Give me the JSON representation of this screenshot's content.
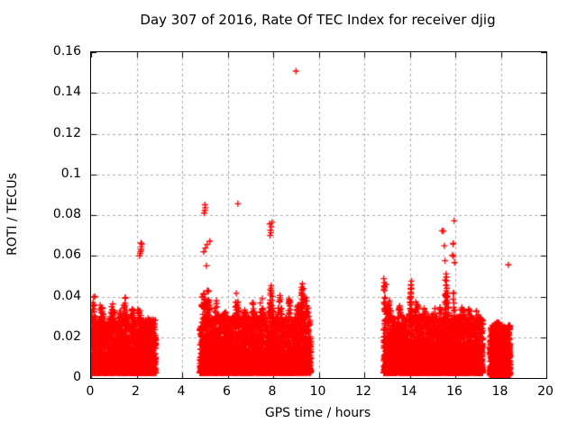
{
  "chart": {
    "title": "Day 307 of 2016, Rate Of TEC Index for receiver djig",
    "xlabel": "GPS time / hours",
    "ylabel": "ROTI / TECUs"
  },
  "chart_data": {
    "type": "scatter",
    "title": "Day 307 of 2016, Rate Of TEC Index for receiver djig",
    "xlabel": "GPS time / hours",
    "ylabel": "ROTI / TECUs",
    "xlim": [
      0,
      20
    ],
    "ylim": [
      0,
      0.16
    ],
    "grid": true,
    "legend": "none",
    "x_ticks": [
      {
        "v": 0,
        "t": "0"
      },
      {
        "v": 2,
        "t": "2"
      },
      {
        "v": 4,
        "t": "4"
      },
      {
        "v": 6,
        "t": "6"
      },
      {
        "v": 8,
        "t": "8"
      },
      {
        "v": 10,
        "t": "10"
      },
      {
        "v": 12,
        "t": "12"
      },
      {
        "v": 14,
        "t": "14"
      },
      {
        "v": 16,
        "t": "16"
      },
      {
        "v": 18,
        "t": "18"
      },
      {
        "v": 20,
        "t": "20"
      }
    ],
    "y_ticks": [
      {
        "v": 0,
        "t": "0"
      },
      {
        "v": 0.02,
        "t": "0.02"
      },
      {
        "v": 0.04,
        "t": "0.04"
      },
      {
        "v": 0.06,
        "t": "0.06"
      },
      {
        "v": 0.08,
        "t": "0.08"
      },
      {
        "v": 0.1,
        "t": "0.1"
      },
      {
        "v": 0.12,
        "t": "0.12"
      },
      {
        "v": 0.14,
        "t": "0.14"
      },
      {
        "v": 0.16,
        "t": "0.16"
      }
    ],
    "marker": {
      "shape": "plus",
      "color": "#ff0000",
      "size": 7,
      "stroke": 1.35
    },
    "grid_color": "#aaaaaa",
    "axis_color": "#000000",
    "background": "#ffffff",
    "seed": 307,
    "clusters": [
      {
        "x_start": 0.02,
        "x_end": 2.85,
        "n": 2100,
        "y_min": 0.0025,
        "y_env": 0.029,
        "skew": 2.2,
        "bumps": [
          [
            0.1,
            0.07,
            0.04,
            25
          ],
          [
            0.45,
            0.09,
            0.036,
            20
          ],
          [
            0.95,
            0.07,
            0.037,
            20
          ],
          [
            1.25,
            0.06,
            0.035,
            15
          ],
          [
            1.5,
            0.07,
            0.04,
            22
          ],
          [
            1.82,
            0.07,
            0.035,
            15
          ],
          [
            2.1,
            0.09,
            0.034,
            15
          ],
          [
            2.55,
            0.06,
            0.03,
            8
          ]
        ]
      },
      {
        "x_start": 4.78,
        "x_end": 9.66,
        "n": 3300,
        "y_min": 0.0025,
        "y_env": 0.03,
        "skew": 2.2,
        "bumps": [
          [
            4.95,
            0.1,
            0.042,
            30
          ],
          [
            5.15,
            0.08,
            0.045,
            25
          ],
          [
            5.5,
            0.08,
            0.038,
            15
          ],
          [
            5.9,
            0.08,
            0.034,
            10
          ],
          [
            6.4,
            0.07,
            0.044,
            20
          ],
          [
            6.75,
            0.08,
            0.034,
            10
          ],
          [
            7.1,
            0.08,
            0.038,
            14
          ],
          [
            7.5,
            0.07,
            0.042,
            16
          ],
          [
            7.9,
            0.08,
            0.046,
            22
          ],
          [
            8.3,
            0.07,
            0.042,
            16
          ],
          [
            8.7,
            0.07,
            0.04,
            14
          ],
          [
            9.1,
            0.06,
            0.038,
            10
          ],
          [
            9.3,
            0.1,
            0.047,
            26
          ],
          [
            9.5,
            0.05,
            0.04,
            10
          ]
        ]
      },
      {
        "x_start": 12.86,
        "x_end": 17.22,
        "n": 3300,
        "y_min": 0.0025,
        "y_env": 0.03,
        "skew": 2.2,
        "bumps": [
          [
            12.9,
            0.06,
            0.046,
            22
          ],
          [
            13.1,
            0.07,
            0.04,
            16
          ],
          [
            13.55,
            0.09,
            0.036,
            14
          ],
          [
            14.05,
            0.06,
            0.046,
            20
          ],
          [
            14.3,
            0.07,
            0.04,
            14
          ],
          [
            14.65,
            0.09,
            0.035,
            12
          ],
          [
            15.05,
            0.07,
            0.038,
            12
          ],
          [
            15.35,
            0.06,
            0.036,
            10
          ],
          [
            15.62,
            0.07,
            0.05,
            26
          ],
          [
            15.92,
            0.05,
            0.042,
            14
          ],
          [
            16.3,
            0.1,
            0.035,
            14
          ],
          [
            16.6,
            0.08,
            0.034,
            12
          ],
          [
            16.95,
            0.08,
            0.033,
            10
          ]
        ]
      },
      {
        "x_start": 17.52,
        "x_end": 18.42,
        "n": 850,
        "y_min": 0.0015,
        "y_env": 0.026,
        "skew": 2.0,
        "bumps": [
          [
            17.85,
            0.1,
            0.028,
            10
          ]
        ]
      }
    ],
    "outliers": [
      [
        2.13,
        0.06
      ],
      [
        2.16,
        0.0613
      ],
      [
        2.18,
        0.0622
      ],
      [
        2.2,
        0.0632
      ],
      [
        2.21,
        0.0645
      ],
      [
        2.23,
        0.0657
      ],
      [
        2.19,
        0.0663
      ],
      [
        4.97,
        0.081
      ],
      [
        5.0,
        0.0823
      ],
      [
        5.02,
        0.0836
      ],
      [
        5.0,
        0.0851
      ],
      [
        4.95,
        0.062
      ],
      [
        5.02,
        0.0638
      ],
      [
        5.1,
        0.0656
      ],
      [
        5.22,
        0.0672
      ],
      [
        5.07,
        0.0551
      ],
      [
        6.45,
        0.0856
      ],
      [
        7.86,
        0.07
      ],
      [
        7.9,
        0.0713
      ],
      [
        7.88,
        0.0726
      ],
      [
        7.92,
        0.0742
      ],
      [
        7.85,
        0.0757
      ],
      [
        7.95,
        0.0765
      ],
      [
        9.0,
        0.1507
      ],
      [
        12.86,
        0.0433
      ],
      [
        12.87,
        0.0451
      ],
      [
        12.88,
        0.0468
      ],
      [
        12.86,
        0.0488
      ],
      [
        14.04,
        0.0421
      ],
      [
        14.06,
        0.0439
      ],
      [
        14.05,
        0.0456
      ],
      [
        14.07,
        0.0476
      ],
      [
        15.42,
        0.0723
      ],
      [
        15.48,
        0.0721
      ],
      [
        15.52,
        0.0649
      ],
      [
        15.55,
        0.0576
      ],
      [
        15.6,
        0.0511
      ],
      [
        15.61,
        0.0496
      ],
      [
        15.62,
        0.0477
      ],
      [
        15.6,
        0.0455
      ],
      [
        15.63,
        0.0441
      ],
      [
        15.61,
        0.0428
      ],
      [
        15.59,
        0.0415
      ],
      [
        15.9,
        0.0658
      ],
      [
        15.95,
        0.0772
      ],
      [
        15.91,
        0.0661
      ],
      [
        15.88,
        0.0604
      ],
      [
        15.92,
        0.0597
      ],
      [
        15.97,
        0.0567
      ],
      [
        18.33,
        0.0556
      ]
    ]
  }
}
